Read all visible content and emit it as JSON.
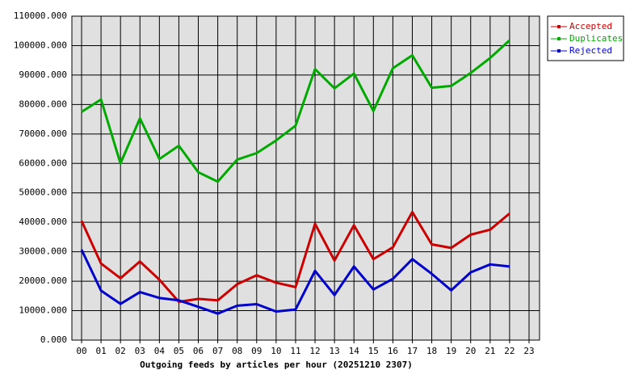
{
  "chart_data": {
    "type": "line",
    "xlabel": "Outgoing feeds by articles per hour (20251210 2307)",
    "categories": [
      "00",
      "01",
      "02",
      "03",
      "04",
      "05",
      "06",
      "07",
      "08",
      "09",
      "10",
      "11",
      "12",
      "13",
      "14",
      "15",
      "16",
      "17",
      "18",
      "19",
      "20",
      "21",
      "22",
      "23"
    ],
    "series": [
      {
        "name": "Accepted",
        "color": "#cc0000",
        "values": [
          40500,
          26000,
          21000,
          26700,
          20500,
          13000,
          14000,
          13500,
          19000,
          22000,
          19500,
          18000,
          39500,
          27000,
          39000,
          27500,
          31500,
          43500,
          32500,
          31300,
          35800,
          37500,
          43000,
          null
        ]
      },
      {
        "name": "Duplicates",
        "color": "#00aa00",
        "values": [
          77500,
          81700,
          60000,
          75300,
          61500,
          66000,
          57000,
          53800,
          61300,
          63500,
          67800,
          72800,
          92000,
          85500,
          90500,
          77800,
          92300,
          96700,
          85700,
          86300,
          90700,
          95800,
          101800,
          null
        ]
      },
      {
        "name": "Rejected",
        "color": "#0000cc",
        "values": [
          30700,
          16800,
          12300,
          16300,
          14300,
          13500,
          11300,
          9000,
          11700,
          12200,
          9700,
          10400,
          23500,
          15300,
          25000,
          17200,
          20800,
          27500,
          22500,
          16900,
          23000,
          25700,
          25000,
          null
        ]
      }
    ],
    "ylim": [
      0,
      110000
    ],
    "yticks": [
      {
        "value": 0,
        "label": "0.000"
      },
      {
        "value": 10000,
        "label": "10000.000"
      },
      {
        "value": 20000,
        "label": "20000.000"
      },
      {
        "value": 30000,
        "label": "30000.000"
      },
      {
        "value": 40000,
        "label": "40000.000"
      },
      {
        "value": 50000,
        "label": "50000.000"
      },
      {
        "value": 60000,
        "label": "60000.000"
      },
      {
        "value": 70000,
        "label": "70000.000"
      },
      {
        "value": 80000,
        "label": "80000.000"
      },
      {
        "value": 90000,
        "label": "90000.000"
      },
      {
        "value": 100000,
        "label": "100000.000"
      },
      {
        "value": 110000,
        "label": "110000.000"
      }
    ],
    "grid": true,
    "legend": "right"
  }
}
